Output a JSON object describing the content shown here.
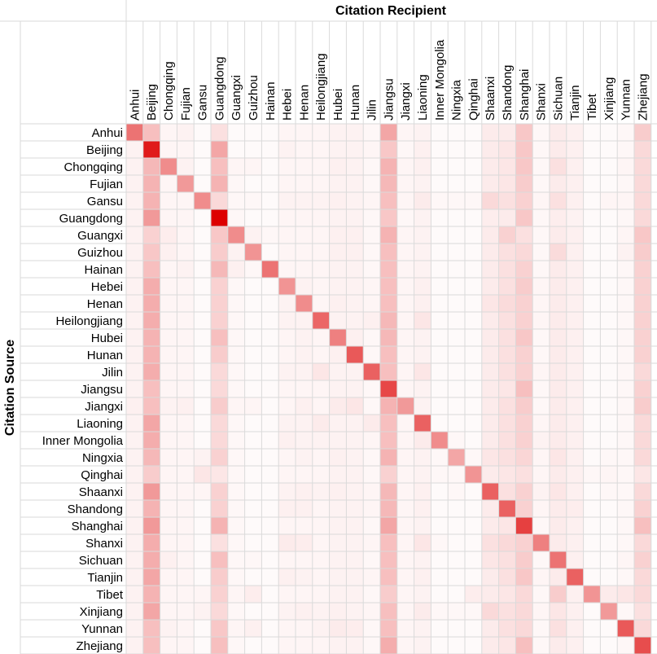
{
  "chart_data": {
    "type": "heatmap",
    "title": "Citation Recipient",
    "ylabel": "Citation Source",
    "colorscale": {
      "low": "#ffffff",
      "high": "#dd0000"
    },
    "grid": true,
    "columns": [
      "Anhui",
      "Beijing",
      "Chongqing",
      "Fujian",
      "Gansu",
      "Guangdong",
      "Guangxi",
      "Guizhou",
      "Hainan",
      "Hebei",
      "Henan",
      "Heilongjiang",
      "Hubei",
      "Hunan",
      "Jilin",
      "Jiangsu",
      "Jiangxi",
      "Liaoning",
      "Inner Mongolia",
      "Ningxia",
      "Qinghai",
      "Shaanxi",
      "Shandong",
      "Shanghai",
      "Shanxi",
      "Sichuan",
      "Tianjin",
      "Tibet",
      "Xinjiang",
      "Yunnan",
      "Zhejiang"
    ],
    "rows": [
      "Anhui",
      "Beijing",
      "Chongqing",
      "Fujian",
      "Gansu",
      "Guangdong",
      "Guangxi",
      "Guizhou",
      "Hainan",
      "Hebei",
      "Henan",
      "Heilongjiang",
      "Hubei",
      "Hunan",
      "Jilin",
      "Jiangsu",
      "Jiangxi",
      "Liaoning",
      "Inner Mongolia",
      "Ningxia",
      "Qinghai",
      "Shaanxi",
      "Shandong",
      "Shanghai",
      "Shanxi",
      "Sichuan",
      "Tianjin",
      "Tibet",
      "Xinjiang",
      "Yunnan",
      "Zhejiang"
    ],
    "values": [
      [
        0.55,
        0.25,
        0.04,
        0.05,
        0.02,
        0.12,
        0.02,
        0.02,
        0.02,
        0.04,
        0.04,
        0.04,
        0.05,
        0.05,
        0.03,
        0.35,
        0.04,
        0.05,
        0.02,
        0.02,
        0.02,
        0.08,
        0.08,
        0.22,
        0.03,
        0.08,
        0.06,
        0.02,
        0.02,
        0.03,
        0.2
      ],
      [
        0.05,
        0.9,
        0.04,
        0.04,
        0.02,
        0.35,
        0.02,
        0.02,
        0.02,
        0.05,
        0.04,
        0.04,
        0.05,
        0.05,
        0.04,
        0.22,
        0.03,
        0.06,
        0.02,
        0.02,
        0.02,
        0.08,
        0.1,
        0.22,
        0.03,
        0.08,
        0.06,
        0.02,
        0.02,
        0.03,
        0.15
      ],
      [
        0.05,
        0.28,
        0.45,
        0.05,
        0.02,
        0.25,
        0.04,
        0.04,
        0.02,
        0.04,
        0.04,
        0.04,
        0.06,
        0.05,
        0.03,
        0.3,
        0.04,
        0.06,
        0.02,
        0.02,
        0.02,
        0.08,
        0.1,
        0.22,
        0.03,
        0.12,
        0.06,
        0.02,
        0.02,
        0.04,
        0.15
      ],
      [
        0.05,
        0.3,
        0.04,
        0.4,
        0.02,
        0.3,
        0.03,
        0.02,
        0.02,
        0.04,
        0.04,
        0.04,
        0.05,
        0.05,
        0.03,
        0.28,
        0.04,
        0.05,
        0.02,
        0.02,
        0.02,
        0.08,
        0.1,
        0.2,
        0.03,
        0.08,
        0.06,
        0.02,
        0.02,
        0.03,
        0.15
      ],
      [
        0.05,
        0.3,
        0.04,
        0.04,
        0.45,
        0.15,
        0.03,
        0.03,
        0.02,
        0.05,
        0.05,
        0.05,
        0.06,
        0.05,
        0.04,
        0.25,
        0.04,
        0.08,
        0.03,
        0.03,
        0.03,
        0.15,
        0.12,
        0.18,
        0.04,
        0.12,
        0.06,
        0.02,
        0.04,
        0.04,
        0.15
      ],
      [
        0.05,
        0.4,
        0.04,
        0.04,
        0.02,
        1.0,
        0.03,
        0.02,
        0.02,
        0.04,
        0.04,
        0.04,
        0.05,
        0.05,
        0.03,
        0.22,
        0.03,
        0.05,
        0.02,
        0.02,
        0.02,
        0.07,
        0.08,
        0.22,
        0.03,
        0.07,
        0.05,
        0.02,
        0.02,
        0.03,
        0.15
      ],
      [
        0.05,
        0.18,
        0.07,
        0.04,
        0.02,
        0.22,
        0.45,
        0.05,
        0.03,
        0.04,
        0.04,
        0.04,
        0.06,
        0.06,
        0.03,
        0.3,
        0.04,
        0.05,
        0.02,
        0.02,
        0.02,
        0.08,
        0.18,
        0.12,
        0.03,
        0.08,
        0.06,
        0.02,
        0.02,
        0.04,
        0.22
      ],
      [
        0.05,
        0.22,
        0.06,
        0.04,
        0.02,
        0.2,
        0.05,
        0.42,
        0.02,
        0.04,
        0.04,
        0.04,
        0.06,
        0.06,
        0.03,
        0.25,
        0.04,
        0.05,
        0.02,
        0.02,
        0.02,
        0.08,
        0.12,
        0.15,
        0.03,
        0.14,
        0.06,
        0.02,
        0.02,
        0.05,
        0.2
      ],
      [
        0.05,
        0.25,
        0.04,
        0.05,
        0.02,
        0.28,
        0.06,
        0.03,
        0.55,
        0.04,
        0.04,
        0.04,
        0.05,
        0.05,
        0.03,
        0.25,
        0.04,
        0.05,
        0.02,
        0.02,
        0.02,
        0.08,
        0.12,
        0.18,
        0.03,
        0.08,
        0.06,
        0.02,
        0.02,
        0.03,
        0.18
      ],
      [
        0.05,
        0.32,
        0.04,
        0.04,
        0.02,
        0.18,
        0.03,
        0.02,
        0.02,
        0.42,
        0.05,
        0.04,
        0.05,
        0.05,
        0.04,
        0.25,
        0.04,
        0.06,
        0.02,
        0.02,
        0.02,
        0.08,
        0.12,
        0.2,
        0.04,
        0.08,
        0.06,
        0.02,
        0.02,
        0.03,
        0.18
      ],
      [
        0.05,
        0.32,
        0.04,
        0.04,
        0.02,
        0.18,
        0.03,
        0.02,
        0.02,
        0.05,
        0.45,
        0.04,
        0.06,
        0.05,
        0.04,
        0.25,
        0.04,
        0.06,
        0.02,
        0.02,
        0.02,
        0.1,
        0.14,
        0.18,
        0.04,
        0.08,
        0.06,
        0.02,
        0.02,
        0.03,
        0.18
      ],
      [
        0.05,
        0.32,
        0.04,
        0.04,
        0.02,
        0.18,
        0.03,
        0.02,
        0.02,
        0.05,
        0.05,
        0.6,
        0.05,
        0.05,
        0.06,
        0.28,
        0.04,
        0.1,
        0.02,
        0.02,
        0.02,
        0.08,
        0.12,
        0.18,
        0.04,
        0.08,
        0.06,
        0.02,
        0.02,
        0.03,
        0.18
      ],
      [
        0.05,
        0.3,
        0.04,
        0.04,
        0.02,
        0.25,
        0.03,
        0.02,
        0.02,
        0.04,
        0.05,
        0.04,
        0.5,
        0.06,
        0.03,
        0.28,
        0.04,
        0.05,
        0.02,
        0.02,
        0.02,
        0.08,
        0.12,
        0.22,
        0.03,
        0.08,
        0.06,
        0.02,
        0.02,
        0.03,
        0.18
      ],
      [
        0.05,
        0.3,
        0.04,
        0.04,
        0.02,
        0.2,
        0.03,
        0.02,
        0.02,
        0.04,
        0.05,
        0.04,
        0.06,
        0.65,
        0.03,
        0.25,
        0.04,
        0.05,
        0.02,
        0.02,
        0.02,
        0.08,
        0.12,
        0.18,
        0.03,
        0.08,
        0.06,
        0.02,
        0.02,
        0.03,
        0.18
      ],
      [
        0.05,
        0.32,
        0.04,
        0.04,
        0.02,
        0.15,
        0.03,
        0.02,
        0.02,
        0.05,
        0.05,
        0.1,
        0.05,
        0.05,
        0.62,
        0.25,
        0.04,
        0.1,
        0.02,
        0.02,
        0.02,
        0.08,
        0.12,
        0.18,
        0.04,
        0.08,
        0.06,
        0.02,
        0.02,
        0.03,
        0.15
      ],
      [
        0.05,
        0.25,
        0.04,
        0.04,
        0.02,
        0.15,
        0.03,
        0.02,
        0.02,
        0.04,
        0.04,
        0.04,
        0.05,
        0.05,
        0.03,
        0.72,
        0.04,
        0.05,
        0.02,
        0.02,
        0.02,
        0.08,
        0.1,
        0.25,
        0.03,
        0.08,
        0.06,
        0.02,
        0.02,
        0.03,
        0.18
      ],
      [
        0.06,
        0.25,
        0.05,
        0.06,
        0.02,
        0.2,
        0.04,
        0.04,
        0.02,
        0.04,
        0.06,
        0.04,
        0.08,
        0.1,
        0.03,
        0.3,
        0.4,
        0.05,
        0.02,
        0.02,
        0.02,
        0.08,
        0.12,
        0.2,
        0.03,
        0.08,
        0.06,
        0.02,
        0.02,
        0.03,
        0.2
      ],
      [
        0.05,
        0.35,
        0.04,
        0.04,
        0.02,
        0.15,
        0.03,
        0.02,
        0.02,
        0.05,
        0.05,
        0.08,
        0.05,
        0.05,
        0.08,
        0.25,
        0.04,
        0.62,
        0.02,
        0.02,
        0.02,
        0.08,
        0.12,
        0.18,
        0.04,
        0.08,
        0.06,
        0.02,
        0.02,
        0.03,
        0.15
      ],
      [
        0.05,
        0.32,
        0.04,
        0.04,
        0.02,
        0.15,
        0.03,
        0.02,
        0.02,
        0.06,
        0.05,
        0.05,
        0.05,
        0.05,
        0.04,
        0.25,
        0.04,
        0.08,
        0.45,
        0.03,
        0.02,
        0.08,
        0.12,
        0.18,
        0.05,
        0.08,
        0.06,
        0.02,
        0.02,
        0.03,
        0.15
      ],
      [
        0.05,
        0.28,
        0.04,
        0.04,
        0.05,
        0.18,
        0.03,
        0.02,
        0.02,
        0.04,
        0.05,
        0.04,
        0.06,
        0.05,
        0.03,
        0.3,
        0.04,
        0.05,
        0.03,
        0.35,
        0.03,
        0.1,
        0.12,
        0.16,
        0.04,
        0.1,
        0.06,
        0.02,
        0.03,
        0.03,
        0.15
      ],
      [
        0.05,
        0.2,
        0.04,
        0.04,
        0.1,
        0.1,
        0.03,
        0.02,
        0.02,
        0.04,
        0.04,
        0.04,
        0.05,
        0.05,
        0.03,
        0.18,
        0.04,
        0.05,
        0.03,
        0.03,
        0.42,
        0.08,
        0.1,
        0.12,
        0.04,
        0.08,
        0.06,
        0.03,
        0.04,
        0.03,
        0.1
      ],
      [
        0.05,
        0.4,
        0.04,
        0.04,
        0.04,
        0.18,
        0.03,
        0.02,
        0.02,
        0.05,
        0.06,
        0.05,
        0.06,
        0.05,
        0.04,
        0.28,
        0.04,
        0.06,
        0.02,
        0.03,
        0.02,
        0.62,
        0.12,
        0.18,
        0.05,
        0.1,
        0.06,
        0.02,
        0.03,
        0.03,
        0.15
      ],
      [
        0.05,
        0.3,
        0.04,
        0.04,
        0.02,
        0.18,
        0.03,
        0.02,
        0.02,
        0.06,
        0.06,
        0.04,
        0.05,
        0.05,
        0.04,
        0.28,
        0.04,
        0.06,
        0.02,
        0.02,
        0.02,
        0.08,
        0.62,
        0.18,
        0.04,
        0.08,
        0.07,
        0.02,
        0.02,
        0.03,
        0.18
      ],
      [
        0.05,
        0.4,
        0.04,
        0.04,
        0.02,
        0.3,
        0.03,
        0.02,
        0.02,
        0.04,
        0.04,
        0.04,
        0.05,
        0.05,
        0.03,
        0.35,
        0.04,
        0.05,
        0.02,
        0.02,
        0.02,
        0.08,
        0.1,
        0.75,
        0.03,
        0.08,
        0.06,
        0.02,
        0.02,
        0.03,
        0.25
      ],
      [
        0.05,
        0.32,
        0.04,
        0.04,
        0.02,
        0.12,
        0.03,
        0.02,
        0.02,
        0.08,
        0.07,
        0.04,
        0.05,
        0.05,
        0.04,
        0.25,
        0.04,
        0.1,
        0.03,
        0.02,
        0.02,
        0.12,
        0.15,
        0.18,
        0.5,
        0.08,
        0.06,
        0.02,
        0.02,
        0.03,
        0.15
      ],
      [
        0.05,
        0.32,
        0.06,
        0.04,
        0.02,
        0.25,
        0.03,
        0.03,
        0.02,
        0.04,
        0.04,
        0.04,
        0.05,
        0.05,
        0.03,
        0.25,
        0.04,
        0.05,
        0.02,
        0.02,
        0.02,
        0.1,
        0.12,
        0.2,
        0.03,
        0.55,
        0.06,
        0.02,
        0.02,
        0.04,
        0.18
      ],
      [
        0.05,
        0.35,
        0.04,
        0.04,
        0.02,
        0.2,
        0.03,
        0.02,
        0.02,
        0.06,
        0.05,
        0.04,
        0.05,
        0.05,
        0.04,
        0.25,
        0.04,
        0.06,
        0.02,
        0.02,
        0.02,
        0.08,
        0.12,
        0.22,
        0.04,
        0.08,
        0.62,
        0.02,
        0.02,
        0.03,
        0.15
      ],
      [
        0.05,
        0.3,
        0.04,
        0.04,
        0.04,
        0.18,
        0.04,
        0.07,
        0.02,
        0.04,
        0.04,
        0.04,
        0.05,
        0.05,
        0.03,
        0.2,
        0.04,
        0.05,
        0.02,
        0.02,
        0.07,
        0.08,
        0.1,
        0.15,
        0.03,
        0.2,
        0.06,
        0.42,
        0.08,
        0.1,
        0.15
      ],
      [
        0.05,
        0.35,
        0.04,
        0.04,
        0.05,
        0.15,
        0.03,
        0.02,
        0.02,
        0.05,
        0.06,
        0.05,
        0.06,
        0.05,
        0.04,
        0.25,
        0.04,
        0.08,
        0.03,
        0.03,
        0.03,
        0.15,
        0.12,
        0.15,
        0.04,
        0.1,
        0.06,
        0.02,
        0.4,
        0.03,
        0.12
      ],
      [
        0.05,
        0.25,
        0.05,
        0.04,
        0.02,
        0.22,
        0.04,
        0.06,
        0.02,
        0.04,
        0.04,
        0.05,
        0.08,
        0.07,
        0.03,
        0.25,
        0.04,
        0.05,
        0.02,
        0.02,
        0.02,
        0.08,
        0.12,
        0.15,
        0.03,
        0.12,
        0.06,
        0.02,
        0.02,
        0.65,
        0.15
      ],
      [
        0.05,
        0.25,
        0.04,
        0.04,
        0.02,
        0.25,
        0.03,
        0.02,
        0.02,
        0.04,
        0.04,
        0.04,
        0.05,
        0.05,
        0.03,
        0.32,
        0.04,
        0.05,
        0.02,
        0.02,
        0.02,
        0.08,
        0.1,
        0.25,
        0.03,
        0.08,
        0.06,
        0.02,
        0.02,
        0.03,
        0.7
      ]
    ]
  }
}
